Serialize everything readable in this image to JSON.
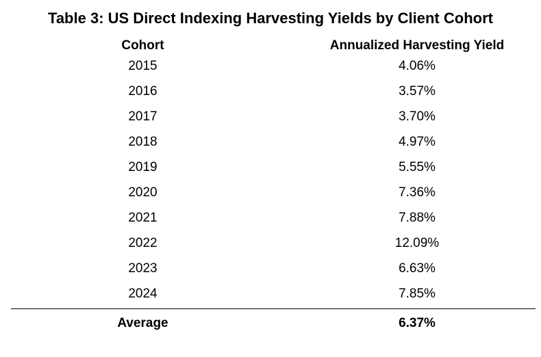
{
  "title": "Table 3: US Direct Indexing Harvesting Yields by Client Cohort",
  "table": {
    "headers": {
      "cohort": "Cohort",
      "yield": "Annualized Harvesting Yield"
    },
    "rows": [
      {
        "cohort": "2015",
        "yield": "4.06%"
      },
      {
        "cohort": "2016",
        "yield": "3.57%"
      },
      {
        "cohort": "2017",
        "yield": "3.70%"
      },
      {
        "cohort": "2018",
        "yield": "4.97%"
      },
      {
        "cohort": "2019",
        "yield": "5.55%"
      },
      {
        "cohort": "2020",
        "yield": "7.36%"
      },
      {
        "cohort": "2021",
        "yield": "7.88%"
      },
      {
        "cohort": "2022",
        "yield": "12.09%"
      },
      {
        "cohort": "2023",
        "yield": "6.63%"
      },
      {
        "cohort": "2024",
        "yield": "7.85%"
      }
    ],
    "footer": {
      "label": "Average",
      "yield": "6.37%"
    }
  }
}
